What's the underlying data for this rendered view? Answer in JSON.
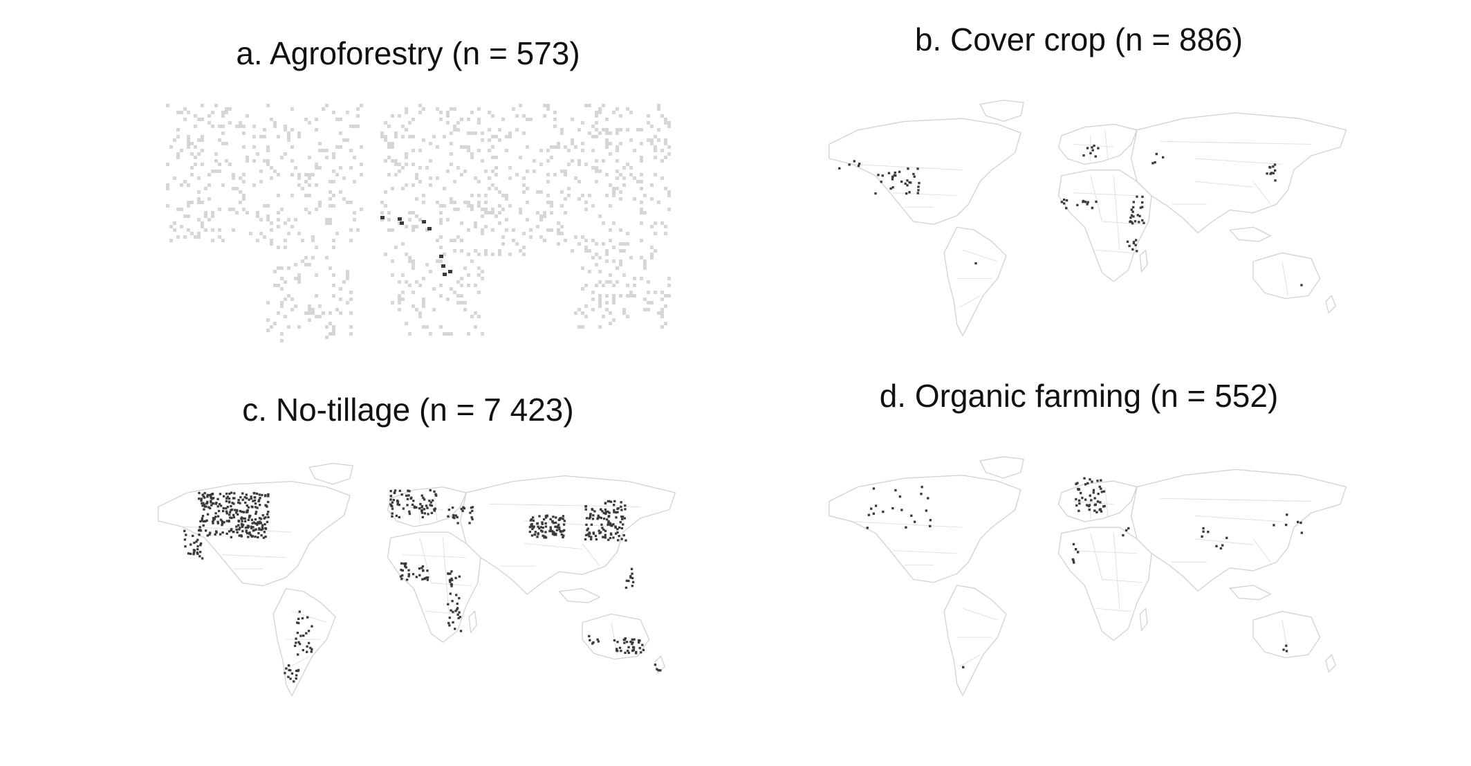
{
  "panels": [
    {
      "id": "a",
      "title": "a.   Agroforestry (n = 573)"
    },
    {
      "id": "b",
      "title": "b. Cover crop (n = 886)"
    },
    {
      "id": "c",
      "title": "c. No-tillage (n = 7 423)"
    },
    {
      "id": "d",
      "title": "d. Organic farming (n = 552)"
    }
  ],
  "colors": {
    "land_outline": "#d2d2d2",
    "grid_cell": "#d6d6d6",
    "site_point": "#3a3a3a",
    "background": "#ffffff"
  }
}
